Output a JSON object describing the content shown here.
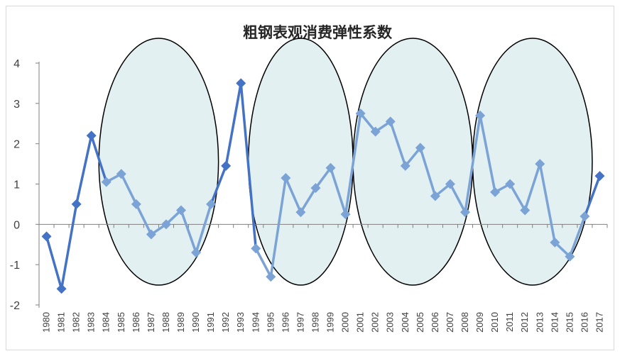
{
  "chart_data": {
    "type": "line",
    "title": "粗钢表观消费弹性系数",
    "xlabel": "",
    "ylabel": "",
    "ylim": [
      -2,
      4
    ],
    "yticks": [
      "4",
      "3",
      "2",
      "1",
      "0",
      "-1",
      "-2"
    ],
    "grid": false,
    "categories": [
      "1980",
      "1981",
      "1982",
      "1983",
      "1984",
      "1985",
      "1986",
      "1987",
      "1988",
      "1989",
      "1990",
      "1991",
      "1992",
      "1993",
      "1994",
      "1995",
      "1996",
      "1997",
      "1998",
      "1999",
      "2000",
      "2001",
      "2002",
      "2003",
      "2004",
      "2005",
      "2006",
      "2007",
      "2008",
      "2009",
      "2010",
      "2011",
      "2012",
      "2013",
      "2014",
      "2015",
      "2016",
      "2017"
    ],
    "series": [
      {
        "values": [
          -0.3,
          -1.6,
          0.5,
          2.2,
          1.05,
          1.25,
          0.5,
          -0.25,
          0.0,
          0.35,
          -0.7,
          0.5,
          1.45,
          3.5,
          -0.6,
          -1.3,
          1.15,
          0.3,
          0.9,
          1.4,
          0.25,
          2.75,
          2.3,
          2.55,
          1.45,
          1.9,
          0.7,
          1.0,
          0.3,
          2.7,
          0.8,
          1.0,
          0.35,
          1.5,
          -0.45,
          -0.8,
          0.2,
          1.2
        ],
        "color": "#4472c4",
        "marker": "diamond"
      }
    ],
    "annotations": [
      {
        "type": "ellipse",
        "category_range": [
          "1984",
          "1991"
        ],
        "fill": "#e2f0f2"
      },
      {
        "type": "ellipse",
        "category_range": [
          "1994",
          "2000"
        ],
        "fill": "#e2f0f2"
      },
      {
        "type": "ellipse",
        "category_range": [
          "2001",
          "2008"
        ],
        "fill": "#e2f0f2"
      },
      {
        "type": "ellipse",
        "category_range": [
          "2009",
          "2016"
        ],
        "fill": "#e2f0f2"
      }
    ]
  }
}
